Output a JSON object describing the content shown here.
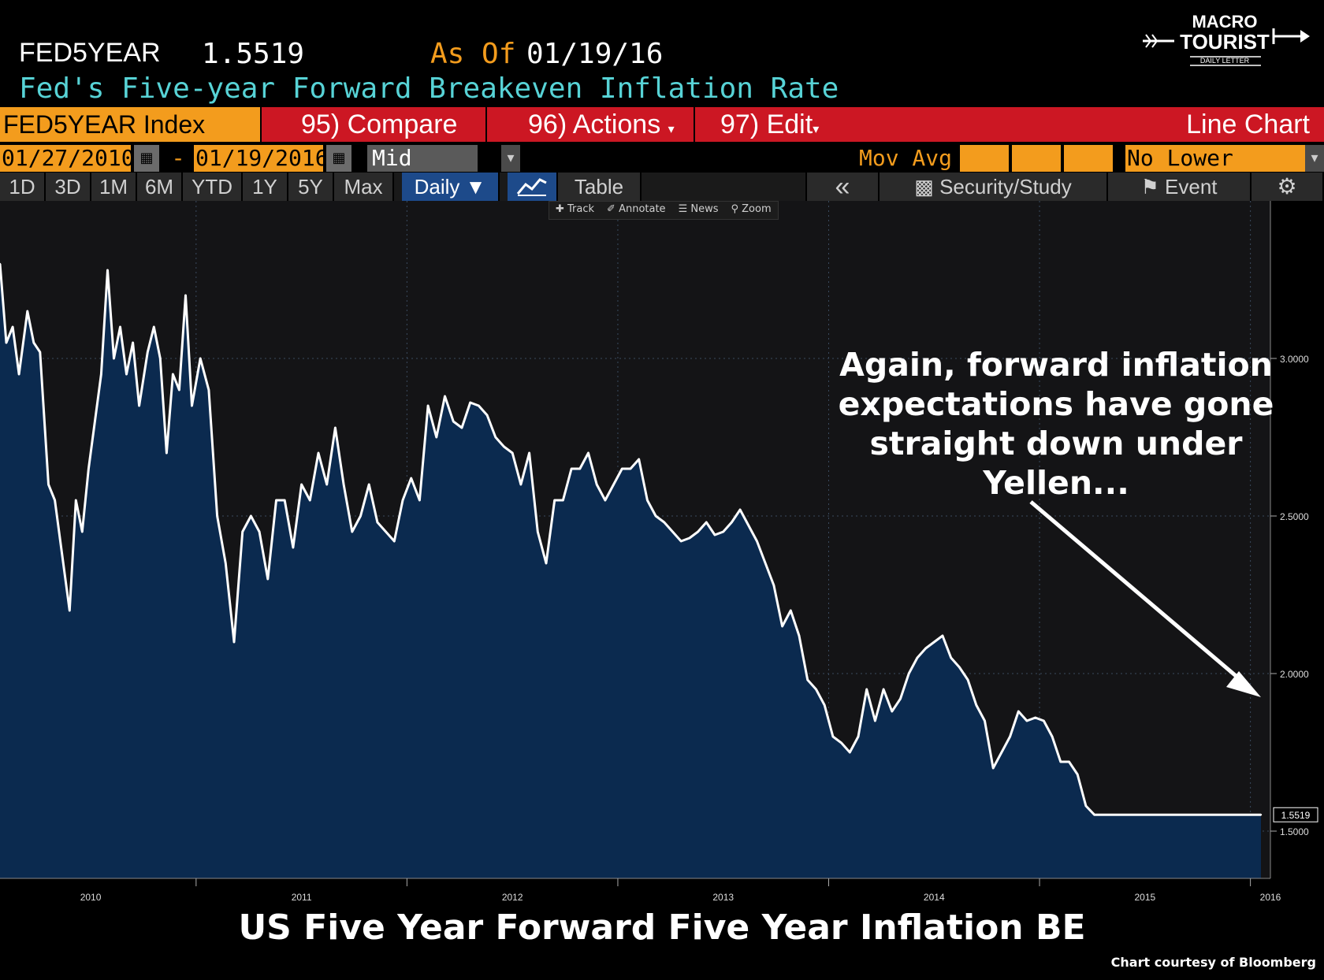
{
  "header": {
    "ticker": "FED5YEAR",
    "last_value": "1.5519",
    "as_of_label": "As Of",
    "as_of_date": "01/19/16",
    "subtitle": "Fed's Five-year Forward Breakeven Inflation Rate"
  },
  "logo": {
    "line1": "MACRO",
    "line2": "TOURIST",
    "line3": "DAILY LETTER"
  },
  "menu_bar": {
    "index_label": "FED5YEAR Index",
    "compare": "95) Compare",
    "actions": "96) Actions",
    "edit": "97) Edit",
    "chart_type": "Line Chart"
  },
  "range_bar": {
    "start_date": "01/27/2010",
    "dash": "-",
    "end_date": "01/19/2016",
    "field": "Mid Yield",
    "mov_avg_label": "Mov Avg",
    "lower_chart": "No Lower Chart"
  },
  "tabs": {
    "periods": [
      "1D",
      "3D",
      "1M",
      "6M",
      "YTD",
      "1Y",
      "5Y",
      "Max"
    ],
    "frequency": "Daily ▼",
    "table": "Table",
    "back": "«",
    "security_study": "Security/Study",
    "event": "Event",
    "settings": "⚙"
  },
  "mini_tools": [
    "Track",
    "Annotate",
    "News",
    "Zoom"
  ],
  "annotation": "Again, forward inflation\nexpectations have gone\nstraight down under\n        Yellen...",
  "footer": {
    "title": "US Five Year Forward Five Year Inflation BE",
    "credit": "Chart courtesy of Bloomberg"
  },
  "colors": {
    "background": "#000000",
    "plot_background": "#141416",
    "area_fill": "#0b2a4f",
    "line": "#ffffff",
    "bloomberg_orange": "#f39c1d",
    "bloomberg_red": "#cc1723",
    "subtitle_cyan": "#57d3d6"
  },
  "chart_data": {
    "type": "area",
    "title": "US Five Year Forward Five Year Inflation BE",
    "xlabel": "",
    "ylabel": "",
    "x_ticks": [
      "2010",
      "2011",
      "2012",
      "2013",
      "2014",
      "2015",
      "2016"
    ],
    "y_ticks": [
      "1.5000",
      "2.0000",
      "2.5000",
      "3.0000"
    ],
    "ylim": [
      1.35,
      3.5
    ],
    "xlim": [
      2010.07,
      2016.05
    ],
    "last_value_label": "1.5519",
    "grid": true,
    "series": [
      {
        "x": [
          2010.07,
          2010.1,
          2010.13,
          2010.16,
          2010.2,
          2010.23,
          2010.26,
          2010.3,
          2010.33,
          2010.36,
          2010.4,
          2010.43,
          2010.46,
          2010.49,
          2010.52,
          2010.55,
          2010.58,
          2010.61,
          2010.64,
          2010.67,
          2010.7,
          2010.73,
          2010.77,
          2010.8,
          2010.83,
          2010.86,
          2010.89,
          2010.92,
          2010.95,
          2010.98,
          2011.02,
          2011.06,
          2011.1,
          2011.14,
          2011.18,
          2011.22,
          2011.26,
          2011.3,
          2011.34,
          2011.38,
          2011.42,
          2011.46,
          2011.5,
          2011.54,
          2011.58,
          2011.62,
          2011.66,
          2011.7,
          2011.74,
          2011.78,
          2011.82,
          2011.86,
          2011.9,
          2011.94,
          2011.98,
          2012.02,
          2012.06,
          2012.1,
          2012.14,
          2012.18,
          2012.22,
          2012.26,
          2012.3,
          2012.34,
          2012.38,
          2012.42,
          2012.46,
          2012.5,
          2012.54,
          2012.58,
          2012.62,
          2012.66,
          2012.7,
          2012.74,
          2012.78,
          2012.82,
          2012.86,
          2012.9,
          2012.94,
          2012.98,
          2013.02,
          2013.06,
          2013.1,
          2013.14,
          2013.18,
          2013.22,
          2013.26,
          2013.3,
          2013.34,
          2013.38,
          2013.42,
          2013.46,
          2013.5,
          2013.54,
          2013.58,
          2013.62,
          2013.66,
          2013.7,
          2013.74,
          2013.78,
          2013.82,
          2013.86,
          2013.9,
          2013.94,
          2013.98,
          2014.02,
          2014.06,
          2014.1,
          2014.14,
          2014.18,
          2014.22,
          2014.26,
          2014.3,
          2014.34,
          2014.38,
          2014.42,
          2014.46,
          2014.5,
          2014.54,
          2014.58,
          2014.62,
          2014.66,
          2014.7,
          2014.74,
          2014.78,
          2014.82,
          2014.86,
          2014.9,
          2014.94,
          2014.98,
          2015.02,
          2015.06,
          2015.1,
          2015.14,
          2015.18,
          2015.22,
          2015.26,
          2015.3,
          2015.34,
          2015.38,
          2015.42,
          2015.46,
          2015.5,
          2015.54,
          2015.58,
          2015.62,
          2015.66,
          2015.7,
          2015.74,
          2015.78,
          2015.82,
          2015.86,
          2015.9,
          2015.94,
          2015.98,
          2016.02,
          2016.05
        ],
        "values": [
          3.3,
          3.05,
          3.1,
          2.95,
          3.15,
          3.05,
          3.02,
          2.6,
          2.55,
          2.4,
          2.2,
          2.55,
          2.45,
          2.65,
          2.8,
          2.95,
          3.28,
          3.0,
          3.1,
          2.95,
          3.05,
          2.85,
          3.02,
          3.1,
          3.0,
          2.7,
          2.95,
          2.9,
          3.2,
          2.85,
          3.0,
          2.9,
          2.5,
          2.35,
          2.1,
          2.45,
          2.5,
          2.45,
          2.3,
          2.55,
          2.55,
          2.4,
          2.6,
          2.55,
          2.7,
          2.6,
          2.78,
          2.6,
          2.45,
          2.5,
          2.6,
          2.48,
          2.45,
          2.42,
          2.55,
          2.62,
          2.55,
          2.85,
          2.75,
          2.88,
          2.8,
          2.78,
          2.86,
          2.85,
          2.82,
          2.75,
          2.72,
          2.7,
          2.6,
          2.7,
          2.45,
          2.35,
          2.55,
          2.55,
          2.65,
          2.65,
          2.7,
          2.6,
          2.55,
          2.6,
          2.65,
          2.65,
          2.68,
          2.55,
          2.5,
          2.48,
          2.45,
          2.42,
          2.43,
          2.45,
          2.48,
          2.44,
          2.45,
          2.48,
          2.52,
          2.47,
          2.42,
          2.35,
          2.28,
          2.15,
          2.2,
          2.12,
          1.98,
          1.95,
          1.9,
          1.8,
          1.78,
          1.75,
          1.8,
          1.95,
          1.85,
          1.95,
          1.88,
          1.92,
          2.0,
          2.05,
          2.08,
          2.1,
          2.12,
          2.05,
          2.02,
          1.98,
          1.9,
          1.85,
          1.7,
          1.75,
          1.8,
          1.88,
          1.85,
          1.86,
          1.85,
          1.8,
          1.72,
          1.72,
          1.68,
          1.58,
          1.5519,
          1.5519,
          1.5519,
          1.5519,
          1.5519,
          1.5519,
          1.5519,
          1.5519,
          1.5519,
          1.5519,
          1.5519,
          1.5519,
          1.5519,
          1.5519,
          1.5519,
          1.5519,
          1.5519,
          1.5519,
          1.5519,
          1.5519,
          1.5519
        ]
      }
    ]
  }
}
